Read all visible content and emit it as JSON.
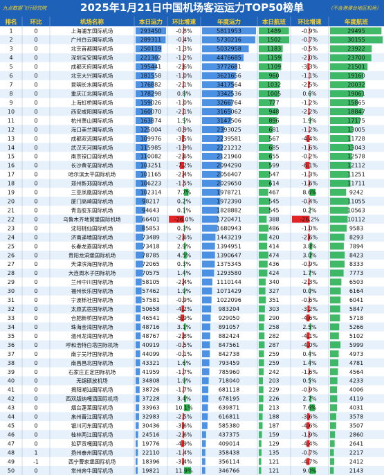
{
  "title": "2025年1月21日中国机场客运运力TOP50榜单",
  "source_note": "九点数据飞行研究院",
  "note": "（不含港澳台地区机场）",
  "columns": [
    "排名",
    "环比",
    "机场名称",
    "本日运力",
    "环比增速",
    "年度运力",
    "本日航班",
    "环比增速",
    "年度航班"
  ],
  "colors": {
    "header_bg": "#1d62b8",
    "accent": "#ffd21f",
    "band_a": "#ffffff",
    "band_b": "#e6f1fb",
    "capacity_bar": "#2e7fde",
    "flight_bar": "#1fae4b",
    "negative_bar": "#e32424",
    "positive_bar": "#28b04b"
  },
  "chart_data": {
    "type": "table",
    "rows": [
      {
        "rank": "1",
        "change": "0",
        "name": "上海浦东国际机场",
        "seats": "293450",
        "seat_growth": "-0.8%",
        "annual_seats": "5811953",
        "flights": "1489",
        "flight_growth": "-0.9%",
        "annual_flights": "29495"
      },
      {
        "rank": "2",
        "change": "0",
        "name": "广州白云国际机场",
        "seats": "289311",
        "seat_growth": "-0.4%",
        "annual_seats": "5730216",
        "flights": "1502",
        "flight_growth": "-0.7%",
        "annual_flights": "30155"
      },
      {
        "rank": "3",
        "change": "0",
        "name": "北京首都国际机场",
        "seats": "250119",
        "seat_growth": "-1.3%",
        "annual_seats": "5032958",
        "flights": "1183",
        "flight_growth": "-0.5%",
        "annual_flights": "23922"
      },
      {
        "rank": "4",
        "change": "0",
        "name": "深圳宝安国际机场",
        "seats": "221302",
        "seat_growth": "-1.2%",
        "annual_seats": "4476685",
        "flights": "1159",
        "flight_growth": "-2.0%",
        "annual_flights": "23700"
      },
      {
        "rank": "5",
        "change": "0",
        "name": "成都天府国际机场",
        "seats": "195441",
        "seat_growth": "-2.6%",
        "annual_seats": "3772681",
        "flights": "1109",
        "flight_growth": "-3.3%",
        "annual_flights": "21501"
      },
      {
        "rank": "6",
        "change": "0",
        "name": "北京大兴国际机场",
        "seats": "181558",
        "seat_growth": "-1.0%",
        "annual_seats": "3621656",
        "flights": "960",
        "flight_growth": "-1.1%",
        "annual_flights": "19160"
      },
      {
        "rank": "7",
        "change": "0",
        "name": "昆明长水国际机场",
        "seats": "176882",
        "seat_growth": "-2.1%",
        "annual_seats": "3417564",
        "flights": "1032",
        "flight_growth": "-2.5%",
        "annual_flights": "20032"
      },
      {
        "rank": "8",
        "change": "0",
        "name": "重庆江北国际机场",
        "seats": "178298",
        "seat_growth": "0.8%",
        "annual_seats": "3342536",
        "flights": "1005",
        "flight_growth": "0.6%",
        "annual_flights": "19061"
      },
      {
        "rank": "9",
        "change": "0",
        "name": "上海虹桥国际机场",
        "seats": "159026",
        "seat_growth": "-1.0%",
        "annual_seats": "3266764",
        "flights": "777",
        "flight_growth": "-1.2%",
        "annual_flights": "15865"
      },
      {
        "rank": "10",
        "change": "0",
        "name": "西安咸阳国际机场",
        "seats": "160070",
        "seat_growth": "-2.1%",
        "annual_seats": "3165062",
        "flights": "948",
        "flight_growth": "-2.2%",
        "annual_flights": "18847"
      },
      {
        "rank": "11",
        "change": "0",
        "name": "杭州萧山国际机场",
        "seats": "163874",
        "seat_growth": "1.5%",
        "annual_seats": "3147506",
        "flights": "896",
        "flight_growth": "1.9%",
        "annual_flights": "17175"
      },
      {
        "rank": "12",
        "change": "0",
        "name": "海口美兰国际机场",
        "seats": "125004",
        "seat_growth": "-0.9%",
        "annual_seats": "2393025",
        "flights": "681",
        "flight_growth": "-1.2%",
        "annual_flights": "13005"
      },
      {
        "rank": "13",
        "change": "0",
        "name": "成都双流国际机场",
        "seats": "109976",
        "seat_growth": "-3.5%",
        "annual_seats": "2239581",
        "flights": "567",
        "flight_growth": "-4.4%",
        "annual_flights": "11728"
      },
      {
        "rank": "14",
        "change": "0",
        "name": "武汉天河国际机场",
        "seats": "115985",
        "seat_growth": "-1.9%",
        "annual_seats": "2221212",
        "flights": "685",
        "flight_growth": "-1.6%",
        "annual_flights": "13043"
      },
      {
        "rank": "15",
        "change": "0",
        "name": "南京禄口国际机场",
        "seats": "110082",
        "seat_growth": "-2.6%",
        "annual_seats": "2121960",
        "flights": "655",
        "flight_growth": "-0.2%",
        "annual_flights": "12578"
      },
      {
        "rank": "16",
        "change": "0",
        "name": "长沙黄花国际机场",
        "seats": "103251",
        "seat_growth": "-7.2%",
        "annual_seats": "2094290",
        "flights": "599",
        "flight_growth": "-6.1%",
        "annual_flights": "12112"
      },
      {
        "rank": "17",
        "change": "0",
        "name": "哈尔滨太平国际机场",
        "seats": "101165",
        "seat_growth": "-2.4%",
        "annual_seats": "2056407",
        "flights": "547",
        "flight_growth": "-1.3%",
        "annual_flights": "11251"
      },
      {
        "rank": "18",
        "change": "0",
        "name": "郑州新郑国际机场",
        "seats": "106223",
        "seat_growth": "-1.5%",
        "annual_seats": "2029650",
        "flights": "614",
        "flight_growth": "-1.6%",
        "annual_flights": "11711"
      },
      {
        "rank": "19",
        "change": "0",
        "name": "三亚凤凰国际机场",
        "seats": "102314",
        "seat_growth": "7.7%",
        "annual_seats": "1978721",
        "flights": "467",
        "flight_growth": "8.6%",
        "annual_flights": "9242"
      },
      {
        "rank": "20",
        "change": "0",
        "name": "厦门高崎国际机场",
        "seats": "98217",
        "seat_growth": "0.2%",
        "annual_seats": "1972390",
        "flights": "545",
        "flight_growth": "-0.4%",
        "annual_flights": "11055"
      },
      {
        "rank": "21",
        "change": "0",
        "name": "青岛胶东国际机场",
        "seats": "94643",
        "seat_growth": "0.1%",
        "annual_seats": "1828882",
        "flights": "545",
        "flight_growth": "0.2%",
        "annual_flights": "10563"
      },
      {
        "rank": "22",
        "change": "0",
        "name": "乌鲁木齐地窝堡国际机场",
        "seats": "66401",
        "seat_growth": "-26.0%",
        "annual_seats": "1720471",
        "flights": "388",
        "flight_growth": "-26.2%",
        "annual_flights": "10112"
      },
      {
        "rank": "23",
        "change": "0",
        "name": "沈阳桃仙国际机场",
        "seats": "85853",
        "seat_growth": "0.3%",
        "annual_seats": "1680943",
        "flights": "486",
        "flight_growth": "-1.0%",
        "annual_flights": "9583"
      },
      {
        "rank": "24",
        "change": "0",
        "name": "济南遥墙国际机场",
        "seats": "73489",
        "seat_growth": "-2.6%",
        "annual_seats": "1443219",
        "flights": "420",
        "flight_growth": "-2.6%",
        "annual_flights": "8293"
      },
      {
        "rank": "25",
        "change": "0",
        "name": "长春龙嘉国际机场",
        "seats": "73418",
        "seat_growth": "2.9%",
        "annual_seats": "1394951",
        "flights": "414",
        "flight_growth": "3.8%",
        "annual_flights": "7894"
      },
      {
        "rank": "26",
        "change": "0",
        "name": "贵阳龙洞堡国际机场",
        "seats": "78785",
        "seat_growth": "4.5%",
        "annual_seats": "1390647",
        "flights": "474",
        "flight_growth": "3.0%",
        "annual_flights": "8423"
      },
      {
        "rank": "27",
        "change": "0",
        "name": "天津滨海国际机场",
        "seats": "72065",
        "seat_growth": "0.3%",
        "annual_seats": "1375345",
        "flights": "436",
        "flight_growth": "-0.9%",
        "annual_flights": "8333"
      },
      {
        "rank": "28",
        "change": "0",
        "name": "大连周水子国际机场",
        "seats": "70575",
        "seat_growth": "1.4%",
        "annual_seats": "1293580",
        "flights": "424",
        "flight_growth": "1.7%",
        "annual_flights": "7773"
      },
      {
        "rank": "29",
        "change": "0",
        "name": "兰州中川国际机场",
        "seats": "58105",
        "seat_growth": "-2.4%",
        "annual_seats": "1110144",
        "flights": "340",
        "flight_growth": "-2.3%",
        "annual_flights": "6503"
      },
      {
        "rank": "30",
        "change": "0",
        "name": "福州长乐国际机场",
        "seats": "57462",
        "seat_growth": "1.9%",
        "annual_seats": "1071429",
        "flights": "327",
        "flight_growth": "0.0%",
        "annual_flights": "6164"
      },
      {
        "rank": "31",
        "change": "0",
        "name": "宁波栎社国际机场",
        "seats": "57581",
        "seat_growth": "-0.9%",
        "annual_seats": "1022096",
        "flights": "351",
        "flight_growth": "-0.6%",
        "annual_flights": "6041"
      },
      {
        "rank": "32",
        "change": "0",
        "name": "太原武宿国际机场",
        "seats": "50658",
        "seat_growth": "-4.2%",
        "annual_seats": "983204",
        "flights": "303",
        "flight_growth": "-3.2%",
        "annual_flights": "5847"
      },
      {
        "rank": "33",
        "change": "0",
        "name": "合肥新桥国际机场",
        "seats": "46541",
        "seat_growth": "-5.9%",
        "annual_seats": "929050",
        "flights": "290",
        "flight_growth": "-4.6%",
        "annual_flights": "5718"
      },
      {
        "rank": "34",
        "change": "0",
        "name": "珠海金湾国际机场",
        "seats": "48716",
        "seat_growth": "3.1%",
        "annual_seats": "891057",
        "flights": "258",
        "flight_growth": "2.5%",
        "annual_flights": "5266"
      },
      {
        "rank": "35",
        "change": "0",
        "name": "温州龙湾国际机场",
        "seats": "48767",
        "seat_growth": "-2.8%",
        "annual_seats": "882424",
        "flights": "282",
        "flight_growth": "-4.1%",
        "annual_flights": "5102"
      },
      {
        "rank": "36",
        "change": "0",
        "name": "呼和浩特白塔国际机场",
        "seats": "40919",
        "seat_growth": "-0.5%",
        "annual_seats": "847561",
        "flights": "287",
        "flight_growth": "-4.0%",
        "annual_flights": "5999"
      },
      {
        "rank": "37",
        "change": "0",
        "name": "南宁吴圩国际机场",
        "seats": "44099",
        "seat_growth": "-0.1%",
        "annual_seats": "842738",
        "flights": "259",
        "flight_growth": "0.4%",
        "annual_flights": "4973"
      },
      {
        "rank": "38",
        "change": "0",
        "name": "南昌昌北国际机场",
        "seats": "43321",
        "seat_growth": "1.6%",
        "annual_seats": "793459",
        "flights": "259",
        "flight_growth": "1.4%",
        "annual_flights": "4781"
      },
      {
        "rank": "39",
        "change": "0",
        "name": "石家庄正定国际机场",
        "seats": "41959",
        "seat_growth": "-1.7%",
        "annual_seats": "785960",
        "flights": "242",
        "flight_growth": "-1.6%",
        "annual_flights": "4564"
      },
      {
        "rank": "40",
        "change": "0",
        "name": "无锡硕放机场",
        "seats": "34808",
        "seat_growth": "1.9%",
        "annual_seats": "718040",
        "flights": "203",
        "flight_growth": "0.5%",
        "annual_flights": "4233"
      },
      {
        "rank": "41",
        "change": "0",
        "name": "揭阳潮汕国际机场",
        "seats": "38726",
        "seat_growth": "-1.7%",
        "annual_seats": "681118",
        "flights": "229",
        "flight_growth": "-0.9%",
        "annual_flights": "4006"
      },
      {
        "rank": "42",
        "change": "0",
        "name": "西双版纳嘎洒国际机场",
        "seats": "37228",
        "seat_growth": "3.4%",
        "annual_seats": "678195",
        "flights": "226",
        "flight_growth": "2.7%",
        "annual_flights": "4119"
      },
      {
        "rank": "43",
        "change": "0",
        "name": "烟台蓬莱国际机场",
        "seats": "33963",
        "seat_growth": "10.1%",
        "annual_seats": "639871",
        "flights": "213",
        "flight_growth": "7.6%",
        "annual_flights": "4031"
      },
      {
        "rank": "44",
        "change": "0",
        "name": "泉州晋江国际机场",
        "seats": "32983",
        "seat_growth": "-2.5%",
        "annual_seats": "616811",
        "flights": "188",
        "flight_growth": "-3.6%",
        "annual_flights": "3578"
      },
      {
        "rank": "45",
        "change": "0",
        "name": "银川河东国际机场",
        "seats": "30436",
        "seat_growth": "-3.6%",
        "annual_seats": "585380",
        "flights": "187",
        "flight_growth": "-4.6%",
        "annual_flights": "3507"
      },
      {
        "rank": "46",
        "change": "0",
        "name": "桂林两江国际机场",
        "seats": "24516",
        "seat_growth": "-2.6%",
        "annual_seats": "437375",
        "flights": "159",
        "flight_growth": "-1.9%",
        "annual_flights": "2860"
      },
      {
        "rank": "47",
        "change": "0",
        "name": "拉萨贡嘎国际机场",
        "seats": "19776",
        "seat_growth": "-4.9%",
        "annual_seats": "409014",
        "flights": "129",
        "flight_growth": "-4.4%",
        "annual_flights": "2641"
      },
      {
        "rank": "48",
        "change": "1",
        "name": "扬州泰州国际机场",
        "seats": "22110",
        "seat_growth": "-1.4%",
        "annual_seats": "358438",
        "flights": "135",
        "flight_growth": "-0.7%",
        "annual_flights": "2217"
      },
      {
        "rank": "49",
        "change": "-1",
        "name": "西宁曹家堡国际机场",
        "seats": "18396",
        "seat_growth": "-3.4%",
        "annual_seats": "356114",
        "flights": "121",
        "flight_growth": "-4.7%",
        "annual_flights": "2412"
      },
      {
        "rank": "50",
        "change": "0",
        "name": "常州奔牛国际机场",
        "seats": "19821",
        "seat_growth": "11.9%",
        "annual_seats": "346766",
        "flights": "121",
        "flight_growth": "9.0%",
        "annual_flights": "2143"
      }
    ]
  }
}
